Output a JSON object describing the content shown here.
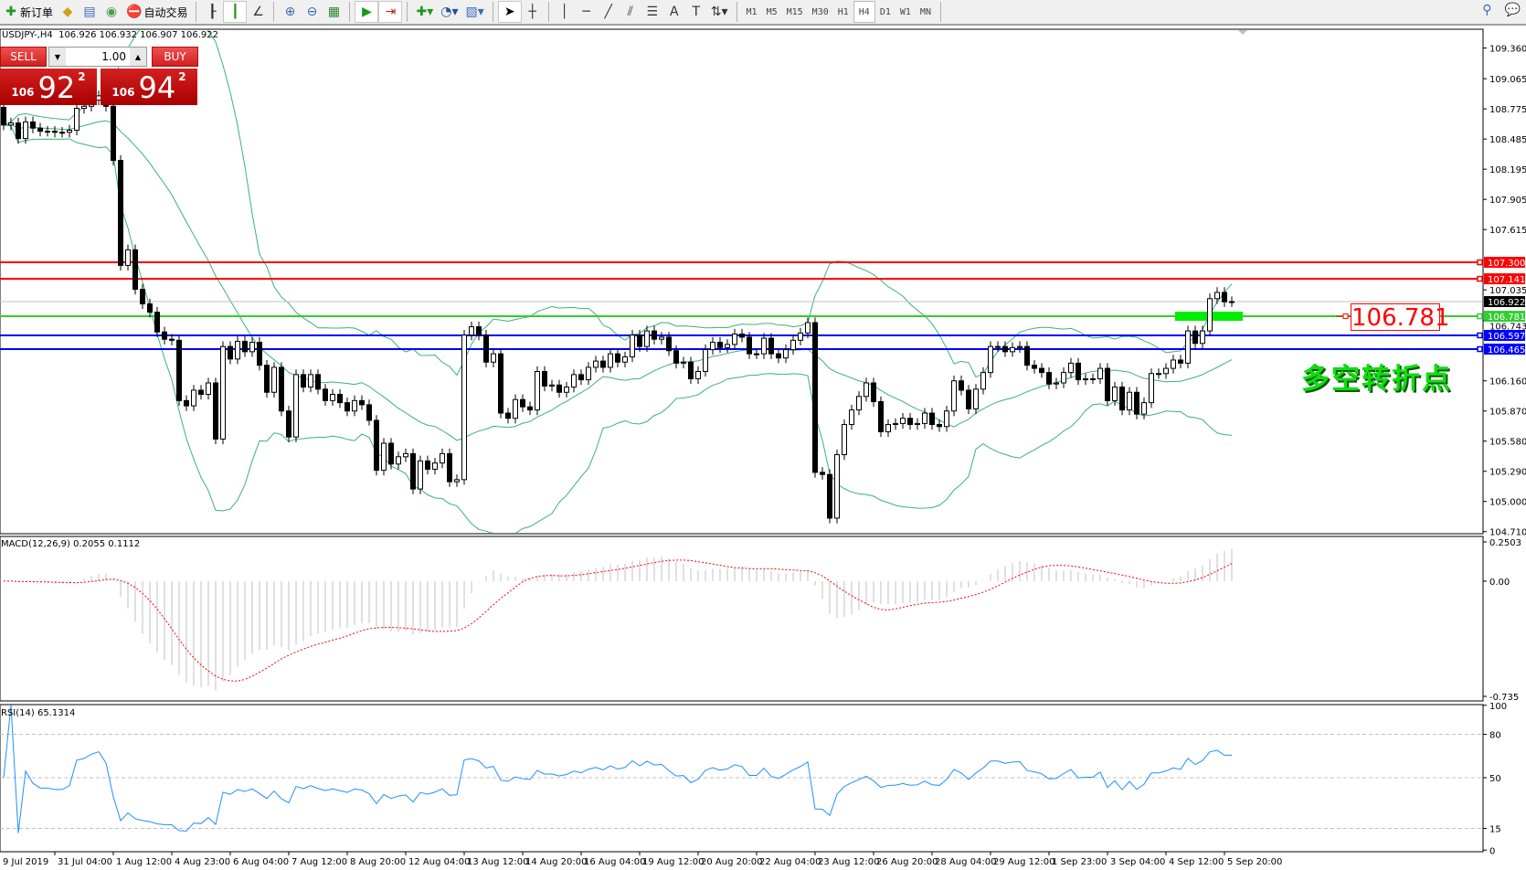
{
  "toolbar": {
    "items": [
      {
        "icon": "new-order-icon",
        "glyph": "✚",
        "color": "#1a9a1a",
        "label": "新订单"
      },
      {
        "icon": "market-watch-icon",
        "glyph": "◆",
        "color": "#d4a020",
        "label": ""
      },
      {
        "icon": "data-window-icon",
        "glyph": "▤",
        "color": "#3a6db5",
        "label": ""
      },
      {
        "icon": "navigator-icon",
        "glyph": "◉",
        "color": "#4aa04a",
        "label": ""
      },
      {
        "icon": "auto-trading-icon",
        "glyph": "⛔",
        "color": "#d03020",
        "label": "自动交易"
      },
      {
        "sep": true
      },
      {
        "icon": "bar-chart-icon",
        "glyph": "┠",
        "color": "#333",
        "label": ""
      },
      {
        "icon": "candlestick-icon",
        "glyph": "┃",
        "color": "#1a9a1a",
        "label": "",
        "active": true
      },
      {
        "icon": "line-chart-icon",
        "glyph": "∠",
        "color": "#333",
        "label": ""
      },
      {
        "sep": true
      },
      {
        "icon": "zoom-in-icon",
        "glyph": "⊕",
        "color": "#3a6db5",
        "label": ""
      },
      {
        "icon": "zoom-out-icon",
        "glyph": "⊖",
        "color": "#3a6db5",
        "label": ""
      },
      {
        "icon": "tile-windows-icon",
        "glyph": "▦",
        "color": "#2a8a2a",
        "label": ""
      },
      {
        "sep": true
      },
      {
        "icon": "auto-scroll-icon",
        "glyph": "▶",
        "color": "#1a9a1a",
        "label": "",
        "active": true
      },
      {
        "icon": "chart-shift-icon",
        "glyph": "⇥",
        "color": "#c02020",
        "label": "",
        "active": true
      },
      {
        "sep": true
      },
      {
        "icon": "indicators-icon",
        "glyph": "✚▾",
        "color": "#1a9a1a",
        "label": ""
      },
      {
        "icon": "periods-icon",
        "glyph": "◔▾",
        "color": "#2050a0",
        "label": ""
      },
      {
        "icon": "templates-icon",
        "glyph": "▧▾",
        "color": "#3a6db5",
        "label": ""
      },
      {
        "sep": true
      },
      {
        "icon": "cursor-icon",
        "glyph": "➤",
        "color": "#000",
        "label": "",
        "active": true
      },
      {
        "icon": "crosshair-icon",
        "glyph": "┼",
        "color": "#333",
        "label": ""
      },
      {
        "sep": true
      },
      {
        "icon": "vertical-line-icon",
        "glyph": "│",
        "color": "#333",
        "label": ""
      },
      {
        "icon": "horizontal-line-icon",
        "glyph": "─",
        "color": "#333",
        "label": ""
      },
      {
        "icon": "trendline-icon",
        "glyph": "╱",
        "color": "#333",
        "label": ""
      },
      {
        "icon": "equidistant-channel-icon",
        "glyph": "⫽",
        "color": "#333",
        "label": ""
      },
      {
        "icon": "fibonacci-icon",
        "glyph": "☰",
        "color": "#333",
        "label": ""
      },
      {
        "icon": "text-icon",
        "glyph": "A",
        "color": "#333",
        "label": ""
      },
      {
        "icon": "text-label-icon",
        "glyph": "T",
        "color": "#333",
        "label": ""
      },
      {
        "icon": "arrows-icon",
        "glyph": "⇅▾",
        "color": "#333",
        "label": ""
      },
      {
        "sep": true
      }
    ],
    "timeframes": [
      "M1",
      "M5",
      "M15",
      "M30",
      "H1",
      "H4",
      "D1",
      "W1",
      "MN"
    ],
    "active_timeframe": "H4",
    "right_icons": [
      {
        "icon": "search-icon",
        "glyph": "⚲"
      },
      {
        "icon": "chat-icon",
        "glyph": "💬"
      }
    ]
  },
  "chart_header": "USDJPY-,H4  106.926 106.932 106.907 106.922",
  "trade_panel": {
    "sell_label": "SELL",
    "buy_label": "BUY",
    "lot": "1.00",
    "sell_price": {
      "prefix": "106",
      "big": "92",
      "sup": "2"
    },
    "buy_price": {
      "prefix": "106",
      "big": "94",
      "sup": "2"
    },
    "sell_color": "#d02020"
  },
  "annotation": {
    "price_box": "106.781",
    "text": "多空转折点",
    "text_color": "#11dd11"
  },
  "indicators": {
    "macd_label": "MACD(12,26,9) 0.2055 0.1112",
    "rsi_label": "RSI(14) 65.1314"
  },
  "chart_data": {
    "type": "candlestick",
    "symbol": "USDJPY-",
    "timeframe": "H4",
    "first_open": 108.79,
    "close": [
      108.62,
      108.64,
      108.49,
      108.65,
      108.59,
      108.56,
      108.56,
      108.55,
      108.55,
      108.57,
      108.78,
      108.8,
      108.86,
      108.9,
      108.8,
      108.28,
      107.27,
      107.42,
      107.04,
      106.9,
      106.82,
      106.63,
      106.56,
      106.55,
      105.97,
      105.92,
      106.07,
      106.03,
      106.14,
      105.6,
      106.49,
      106.37,
      106.54,
      106.44,
      106.53,
      106.31,
      106.05,
      106.29,
      105.87,
      105.62,
      106.22,
      106.1,
      106.22,
      106.08,
      105.97,
      106.03,
      105.95,
      105.87,
      105.97,
      105.93,
      105.78,
      105.3,
      105.56,
      105.36,
      105.43,
      105.46,
      105.12,
      105.39,
      105.31,
      105.37,
      105.46,
      105.19,
      105.21,
      106.6,
      106.68,
      106.6,
      106.34,
      106.42,
      105.85,
      105.8,
      105.98,
      105.91,
      105.88,
      106.25,
      106.11,
      106.12,
      106.05,
      106.1,
      106.22,
      106.17,
      106.29,
      106.35,
      106.29,
      106.42,
      106.34,
      106.39,
      106.6,
      106.49,
      106.64,
      106.56,
      106.58,
      106.45,
      106.33,
      106.34,
      106.18,
      106.25,
      106.46,
      106.53,
      106.48,
      106.51,
      106.61,
      106.58,
      106.42,
      106.42,
      106.57,
      106.42,
      106.38,
      106.46,
      106.55,
      106.62,
      106.72,
      105.28,
      105.26,
      104.84,
      105.45,
      105.74,
      105.88,
      106.01,
      106.14,
      105.96,
      105.67,
      105.74,
      105.75,
      105.8,
      105.74,
      105.75,
      105.85,
      105.74,
      105.72,
      105.87,
      106.16,
      106.07,
      105.89,
      106.08,
      106.24,
      106.49,
      106.49,
      106.44,
      106.48,
      106.49,
      106.31,
      106.28,
      106.24,
      106.13,
      106.14,
      106.24,
      106.33,
      106.17,
      106.18,
      106.18,
      106.28,
      105.97,
      106.1,
      105.88,
      106.05,
      105.84,
      105.95,
      106.23,
      106.23,
      106.28,
      106.36,
      106.33,
      106.64,
      106.52,
      106.64,
      106.95,
      107.01,
      106.92,
      106.922
    ],
    "price_ticks": [
      "109.360",
      "109.065",
      "108.775",
      "108.485",
      "108.195",
      "107.905",
      "107.615",
      "107.035",
      "106.743",
      "106.160",
      "105.870",
      "105.580",
      "105.290",
      "105.000",
      "104.710"
    ],
    "time_labels": [
      "9 Jul 2019",
      "31 Jul 04:00",
      "1 Aug 12:00",
      "4 Aug 23:00",
      "6 Aug 04:00",
      "7 Aug 12:00",
      "8 Aug 20:00",
      "12 Aug 04:00",
      "13 Aug 12:00",
      "14 Aug 20:00",
      "16 Aug 04:00",
      "19 Aug 12:00",
      "20 Aug 20:00",
      "22 Aug 04:00",
      "23 Aug 12:00",
      "26 Aug 20:00",
      "28 Aug 04:00",
      "29 Aug 12:00",
      "1 Sep 23:00",
      "3 Sep 04:00",
      "4 Sep 12:00",
      "5 Sep 20:00"
    ],
    "horizontal_lines": [
      {
        "price": "107.300",
        "color": "#ff0000"
      },
      {
        "price": "107.141",
        "color": "#ff0000"
      },
      {
        "price": "106.922",
        "color": "#000000",
        "line_color": "#c0c0c0"
      },
      {
        "price": "106.781",
        "color": "#33cc33"
      },
      {
        "price": "106.597",
        "color": "#0000ff"
      },
      {
        "price": "106.465",
        "color": "#0000ff"
      }
    ],
    "bollinger": {
      "period": 20,
      "deviation": 2,
      "color": "#3cb371"
    },
    "highlight_zone": {
      "price": 106.781,
      "color": "#00ee00"
    },
    "macd": {
      "fast": 12,
      "slow": 26,
      "signal": 9,
      "ticks": [
        "0.2503",
        "0.00",
        "-0.735"
      ],
      "range": [
        -0.735,
        0.2503
      ],
      "hist_color": "#c0c0c0",
      "signal_color": "#ff0000"
    },
    "rsi": {
      "period": 14,
      "levels": [
        "80",
        "50",
        "15"
      ],
      "ticks": [
        "100",
        "80",
        "50",
        "15",
        "0"
      ],
      "range": [
        0,
        100
      ],
      "color": "#1e90ff"
    },
    "bull_color": "#ffffff",
    "bear_color": "#000000"
  }
}
